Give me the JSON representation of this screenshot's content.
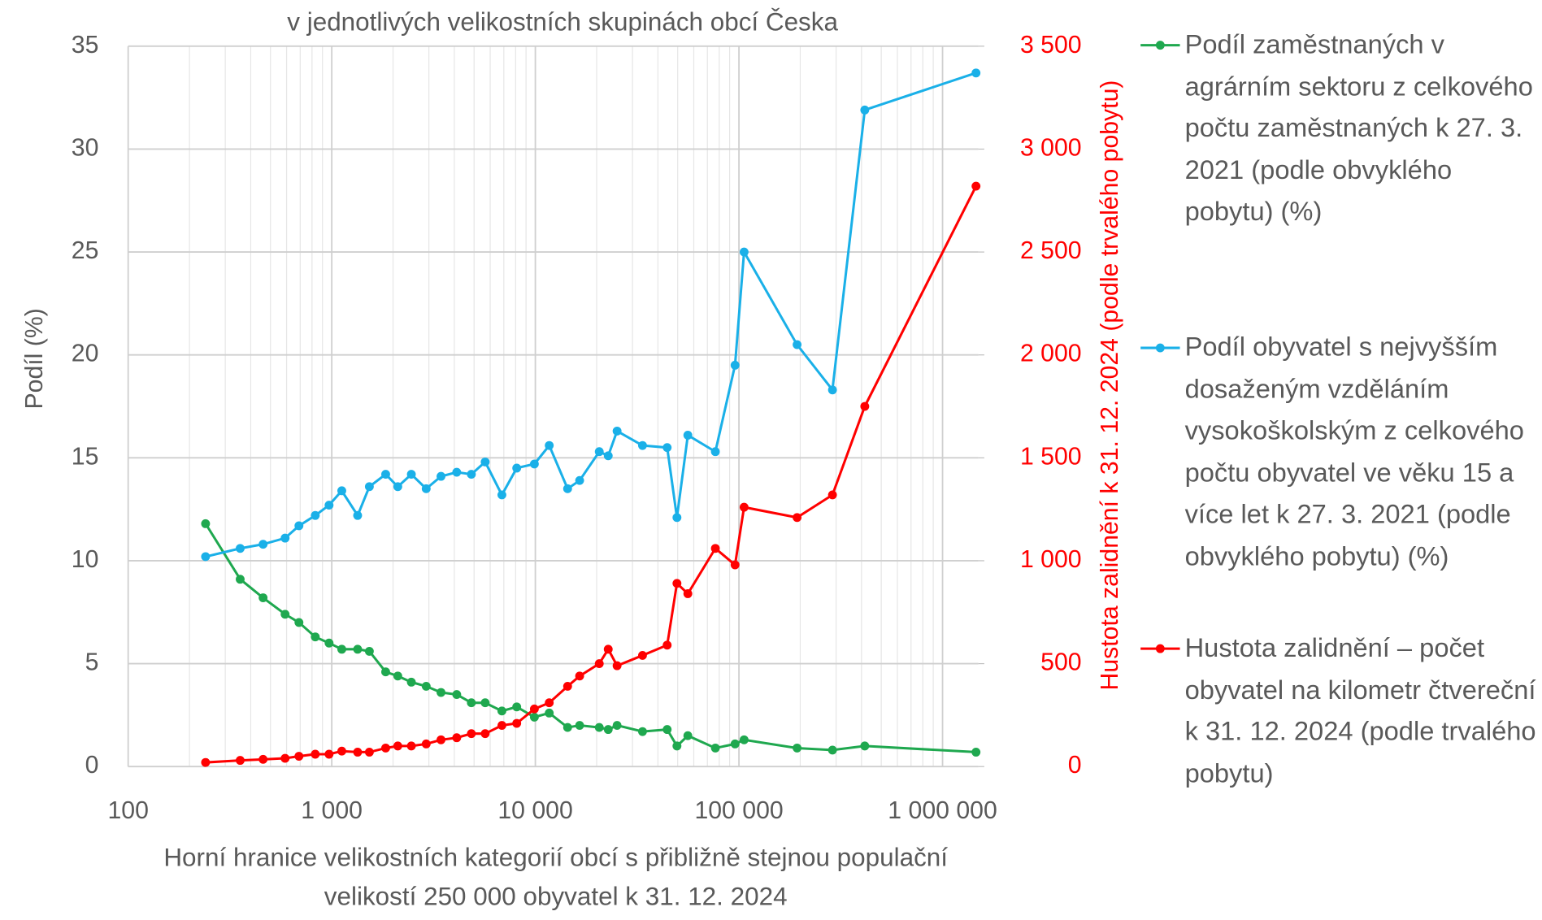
{
  "chart_data": {
    "type": "line",
    "title": "v jednotlivých velikostních skupinách obcí Česka",
    "x_label": "Horní hranice velikostních kategorií obcí s přibližně stejnou populační velikostí 250 000 obyvatel k 31. 12. 2024",
    "y_label": "Podíl (%)",
    "y2_label": "Hustota zalidnění k 31. 12. 2024 (podle trvalého pobytu)",
    "x_log": true,
    "xlim": [
      100,
      1500000
    ],
    "xticks": [
      100,
      {
        "value": 1000,
        "label": "1 000"
      },
      {
        "value": 10000,
        "label": "10 000"
      },
      {
        "value": 100000,
        "label": "100 000"
      },
      {
        "value": 1000000,
        "label": "1 000 000"
      }
    ],
    "ylim": [
      0,
      35
    ],
    "yticks": [
      0,
      5,
      10,
      15,
      20,
      25,
      30,
      35
    ],
    "y2lim": [
      0,
      3500
    ],
    "y2ticks": [
      0,
      500,
      {
        "value": 1000,
        "label": "1 000"
      },
      {
        "value": 1500,
        "label": "1 500"
      },
      {
        "value": 2000,
        "label": "2 000"
      },
      {
        "value": 2500,
        "label": "2 500"
      },
      {
        "value": 3000,
        "label": "3 000"
      },
      {
        "value": 3500,
        "label": "3 500"
      }
    ],
    "grid": true,
    "legend": "right",
    "x": [
      240,
      355,
      460,
      590,
      690,
      830,
      970,
      1120,
      1340,
      1530,
      1840,
      2110,
      2460,
      2910,
      3440,
      4110,
      4850,
      5670,
      6850,
      8100,
      9890,
      11700,
      14400,
      16500,
      20600,
      22800,
      25200,
      33600,
      44400,
      49600,
      56100,
      76600,
      95700,
      106000,
      193000,
      288000,
      415000,
      1460000
    ],
    "series": [
      {
        "name": "Podíl zaměstnaných v agrárním sektoru z celkového počtu zaměstnaných k 27. 3. 2021 (podle obvyklého pobytu) (%)",
        "color": "#1fa84f",
        "values": [
          11.8,
          9.1,
          8.2,
          7.4,
          7.0,
          6.3,
          6.0,
          5.7,
          5.7,
          5.6,
          4.6,
          4.4,
          4.1,
          3.9,
          3.6,
          3.5,
          3.1,
          3.1,
          2.7,
          2.9,
          2.4,
          2.6,
          1.9,
          2.0,
          1.9,
          1.8,
          2.0,
          1.7,
          1.8,
          1.0,
          1.5,
          0.9,
          1.1,
          1.3,
          0.9,
          0.8,
          1.0,
          0.7
        ]
      },
      {
        "name": "Podíl obyvatel s nejvyšším dosaženým vzděláním vysokoškolským z celkového počtu obyvatel ve věku 15 a více let k 27. 3. 2021 (podle obvyklého pobytu) (%)",
        "color": "#1ab0e8",
        "values": [
          10.2,
          10.6,
          10.8,
          11.1,
          11.7,
          12.2,
          12.7,
          13.4,
          12.2,
          13.6,
          14.2,
          13.6,
          14.2,
          13.5,
          14.1,
          14.3,
          14.2,
          14.8,
          13.2,
          14.5,
          14.7,
          15.6,
          13.5,
          13.9,
          15.3,
          15.1,
          16.3,
          15.6,
          15.5,
          12.1,
          16.1,
          15.3,
          19.5,
          25.0,
          20.5,
          18.3,
          31.9,
          33.7
        ]
      },
      {
        "name": "Hustota zalidnění – počet obyvatel na kilometr čtvereční k 31. 12. 2024 (podle trvalého pobytu)",
        "color": "#ff0000",
        "axis": "y2",
        "values": [
          20,
          30,
          35,
          40,
          50,
          60,
          60,
          75,
          70,
          70,
          90,
          100,
          100,
          110,
          130,
          140,
          160,
          160,
          200,
          210,
          280,
          310,
          390,
          440,
          500,
          570,
          490,
          540,
          590,
          890,
          840,
          1060,
          980,
          1260,
          1210,
          1320,
          1750,
          2820
        ]
      }
    ]
  }
}
